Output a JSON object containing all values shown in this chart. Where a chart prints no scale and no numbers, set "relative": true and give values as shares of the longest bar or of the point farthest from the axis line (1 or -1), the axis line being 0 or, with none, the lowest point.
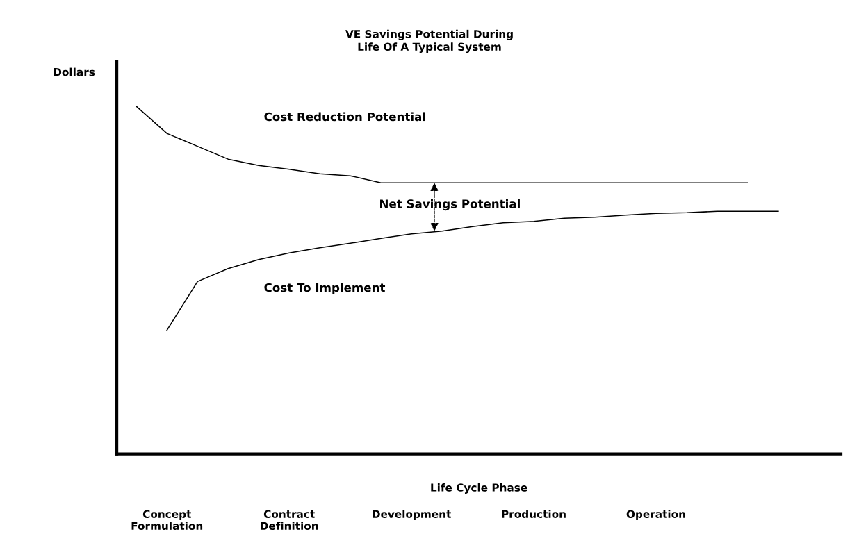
{
  "chart_data": {
    "type": "line",
    "title": "VE Savings Potential During\nLife Of A Typical System",
    "xlabel": "Life Cycle Phase",
    "ylabel": "Dollars",
    "relative": true,
    "categories": [
      null,
      "Concept\nFormulation",
      null,
      null,
      null,
      "Contract\nDefinition",
      null,
      null,
      null,
      "Development",
      null,
      null,
      null,
      "Production",
      null,
      null,
      null,
      "Operation",
      null,
      null,
      null,
      null
    ],
    "series": [
      {
        "color": "#000000",
        "values": [
          1,
          0.922,
          0.885,
          0.848,
          0.83,
          0.819,
          0.806,
          0.8,
          0.78,
          0.78,
          0.78,
          0.78,
          0.78,
          0.78,
          0.78,
          0.78,
          0.78,
          0.78,
          0.78,
          0.78,
          0.78,
          null
        ]
      },
      {
        "color": "#000000",
        "values": [
          null,
          0.356,
          0.496,
          0.533,
          0.559,
          0.578,
          0.593,
          0.606,
          0.62,
          0.633,
          0.641,
          0.654,
          0.665,
          0.669,
          0.678,
          0.681,
          0.687,
          0.692,
          0.694,
          0.698,
          0.698,
          0.698
        ]
      }
    ],
    "annotations": [
      "Cost Reduction Potential",
      "Net Savings Potential",
      "Cost To Implement"
    ],
    "grid": false,
    "legend": false,
    "marker": "none",
    "line_style": "solid"
  }
}
